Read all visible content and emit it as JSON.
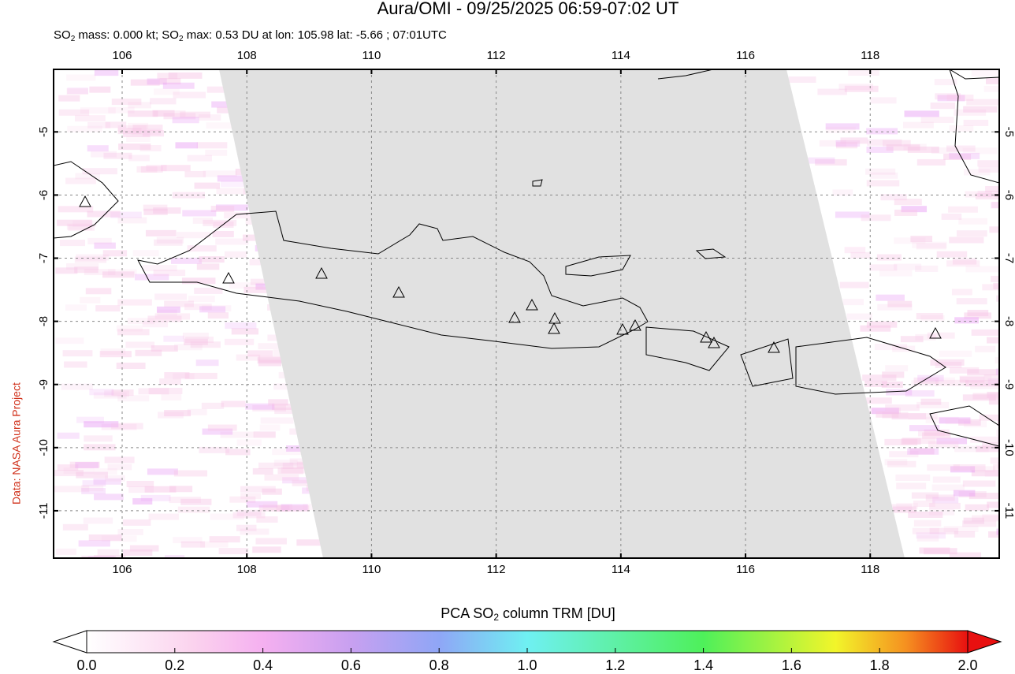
{
  "map": {
    "title": "Aura/OMI - 09/25/2025 06:59-07:02 UT",
    "subtitle": [
      "SO",
      "2",
      " mass: 0.000 kt; SO",
      "2",
      " max: 0.53 DU at lon: 105.98 lat: -5.66 ; 07:01UTC"
    ],
    "credit": "Data: NASA Aura Project",
    "lonlim": [
      104.9,
      120.07
    ],
    "latlim": [
      -11.75,
      -4.01
    ],
    "lonticks": [
      106,
      108,
      110,
      112,
      114,
      116,
      118
    ],
    "latticks": [
      -5,
      -6,
      -7,
      -8,
      -9,
      -10,
      -11
    ],
    "grid": true,
    "colorbar": {
      "label": [
        "PCA SO",
        "2",
        " column TRM [DU]"
      ],
      "clim": [
        0,
        2
      ],
      "ticks": [
        {
          "value": 0,
          "label": "0.0"
        },
        {
          "value": 0.2,
          "label": "0.2"
        },
        {
          "value": 0.4,
          "label": "0.4"
        },
        {
          "value": 0.6,
          "label": "0.6"
        },
        {
          "value": 0.8,
          "label": "0.8"
        },
        {
          "value": 1,
          "label": "1.0"
        },
        {
          "value": 1.2,
          "label": "1.2"
        },
        {
          "value": 1.4,
          "label": "1.4"
        },
        {
          "value": 1.6,
          "label": "1.6"
        },
        {
          "value": 1.8,
          "label": "1.8"
        },
        {
          "value": 2,
          "label": "2.0"
        }
      ]
    }
  }
}
